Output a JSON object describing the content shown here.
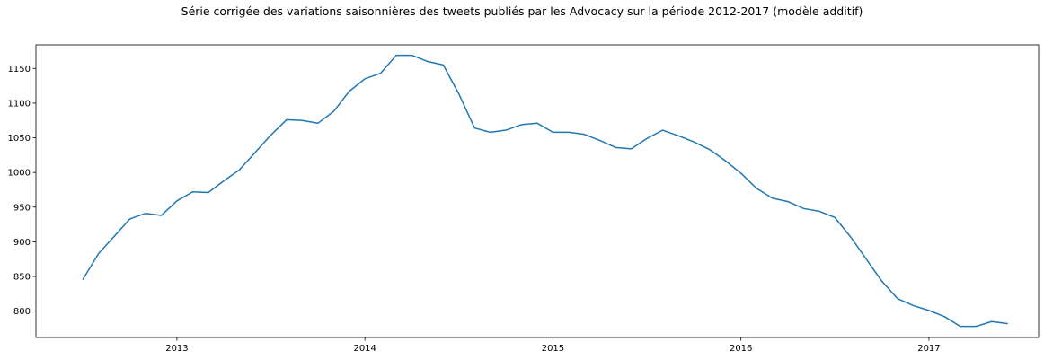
{
  "chart_data": {
    "type": "line",
    "title": "Série corrigée des variations saisonnières des tweets publiés par les Advocacy sur la période 2012-2017 (modèle additif)",
    "xlabel": "",
    "ylabel": "",
    "x_tick_labels": [
      "2013",
      "2014",
      "2015",
      "2016",
      "2017"
    ],
    "y_ticks": [
      800,
      850,
      900,
      950,
      1000,
      1050,
      1100,
      1150
    ],
    "xlim": [
      "2012-04",
      "2017-08"
    ],
    "ylim": [
      762,
      1184
    ],
    "grid": false,
    "line_color": "#1f77b4",
    "series": [
      {
        "x": [
          "2012-07",
          "2012-08",
          "2012-09",
          "2012-10",
          "2012-11",
          "2012-12",
          "2013-01",
          "2013-02",
          "2013-03",
          "2013-04",
          "2013-05",
          "2013-06",
          "2013-07",
          "2013-08",
          "2013-09",
          "2013-10",
          "2013-11",
          "2013-12",
          "2014-01",
          "2014-02",
          "2014-03",
          "2014-04",
          "2014-05",
          "2014-06",
          "2014-07",
          "2014-08",
          "2014-09",
          "2014-10",
          "2014-11",
          "2014-12",
          "2015-01",
          "2015-02",
          "2015-03",
          "2015-04",
          "2015-05",
          "2015-06",
          "2015-07",
          "2015-08",
          "2015-09",
          "2015-10",
          "2015-11",
          "2015-12",
          "2016-01",
          "2016-02",
          "2016-03",
          "2016-04",
          "2016-05",
          "2016-06",
          "2016-07",
          "2016-08",
          "2016-09",
          "2016-10",
          "2016-11",
          "2016-12",
          "2017-01",
          "2017-02",
          "2017-03",
          "2017-04",
          "2017-05",
          "2017-06"
        ],
        "values": [
          846,
          883,
          908,
          933,
          941,
          938,
          959,
          972,
          971,
          988,
          1004,
          1029,
          1054,
          1076,
          1075,
          1071,
          1088,
          1117,
          1135,
          1143,
          1169,
          1169,
          1160,
          1155,
          1113,
          1064,
          1058,
          1061,
          1069,
          1071,
          1058,
          1058,
          1055,
          1046,
          1036,
          1034,
          1049,
          1061,
          1053,
          1044,
          1033,
          1017,
          999,
          977,
          963,
          958,
          948,
          944,
          935,
          907,
          875,
          843,
          818,
          808,
          801,
          792,
          778,
          778,
          785,
          782
        ]
      }
    ]
  }
}
